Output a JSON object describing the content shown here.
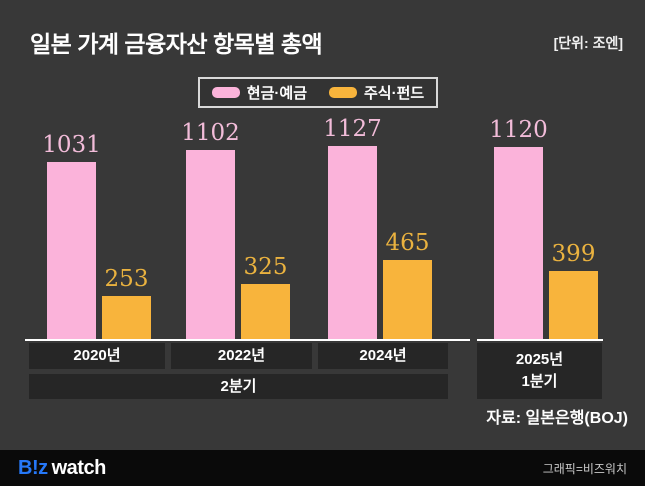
{
  "header": {
    "title": "일본 가계 금융자산 항목별 총액",
    "unit_label": "[단위: 조엔]"
  },
  "chart_data": {
    "type": "bar",
    "title": "일본 가계 금융자산 항목별 총액",
    "unit": "조엔",
    "categories": [
      "2020년",
      "2022년",
      "2024년",
      "2025년"
    ],
    "quarter_label_left": "2분기",
    "quarter_label_right": "1분기",
    "series": [
      {
        "name": "현금·예금",
        "color": "#fbb3da",
        "label_color": "#f2bcd9",
        "values": [
          1031,
          1102,
          1127,
          1120
        ]
      },
      {
        "name": "주식·펀드",
        "color": "#f8b43c",
        "label_color": "#eab23f",
        "values": [
          253,
          325,
          465,
          399
        ]
      }
    ],
    "ylim": [
      0,
      1200
    ],
    "grid": false,
    "legend_position": "top-center",
    "value_labels": true,
    "source": "자료: 일본은행(BOJ)"
  },
  "footer": {
    "logo_primary": "B!z",
    "logo_secondary": "watch",
    "credit": "그래픽=비즈워치"
  },
  "colors": {
    "background": "#383838",
    "axis_box": "#262626",
    "axis_line": "#ffffff",
    "footer_bg": "#0a0a0a",
    "logo_blue": "#2678f8",
    "title_text": "#ffffff",
    "credit_text": "#c9c9c9"
  }
}
